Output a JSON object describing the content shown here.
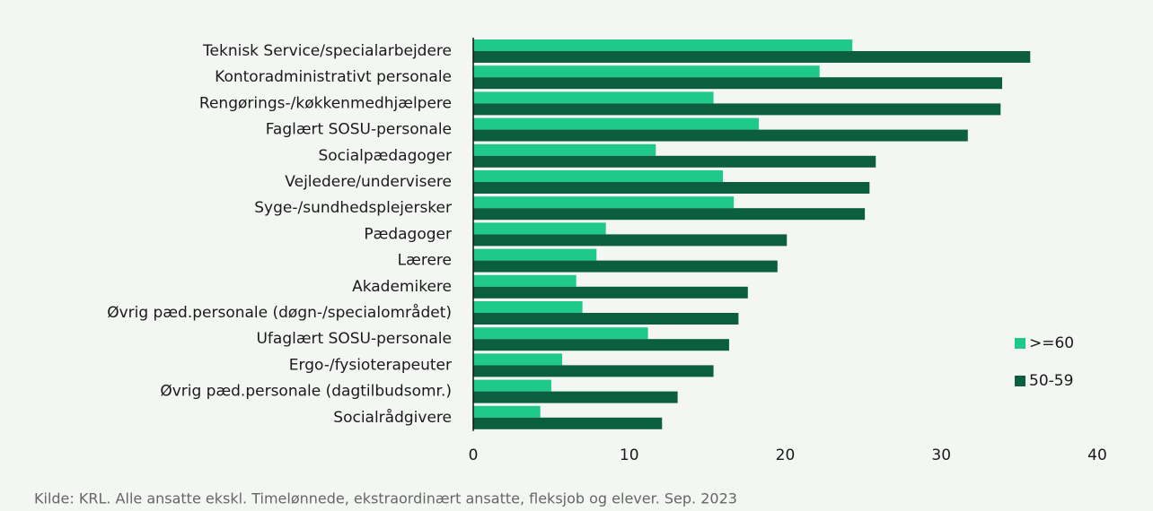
{
  "chart_data": {
    "type": "hbar",
    "categories": [
      "Teknisk Service/specialarbejdere",
      "Kontoradministrativt personale",
      "Rengørings-/køkkenmedhjælpere",
      "Faglært SOSU-personale",
      "Socialpædagoger",
      "Vejledere/undervisere",
      "Syge-/sundhedsplejersker",
      "Pædagoger",
      "Lærere",
      "Akademikere",
      "Øvrig pæd.personale (døgn-/specialområdet)",
      "Ufaglært SOSU-personale",
      "Ergo-/fysioterapeuter",
      "Øvrig pæd.personale (dagtilbudsomr.)",
      "Socialrådgivere"
    ],
    "series": [
      {
        "name": ">=60",
        "color": "#1ec98a",
        "values": [
          24.3,
          22.2,
          15.4,
          18.3,
          11.7,
          16.0,
          16.7,
          8.5,
          7.9,
          6.6,
          7.0,
          11.2,
          5.7,
          5.0,
          4.3
        ]
      },
      {
        "name": "50-59",
        "color": "#0b5f40",
        "values": [
          35.7,
          33.9,
          33.8,
          31.7,
          25.8,
          25.4,
          25.1,
          20.1,
          19.5,
          17.6,
          17.0,
          16.4,
          15.4,
          13.1,
          12.1
        ]
      }
    ],
    "xlim": [
      0,
      40
    ],
    "xticks": [
      0,
      10,
      20,
      30,
      40
    ],
    "legend": "right",
    "source": "Kilde: KRL. Alle ansatte ekskl. Timelønnede, ekstraordinært ansatte, fleksjob og elever. Sep. 2023"
  }
}
